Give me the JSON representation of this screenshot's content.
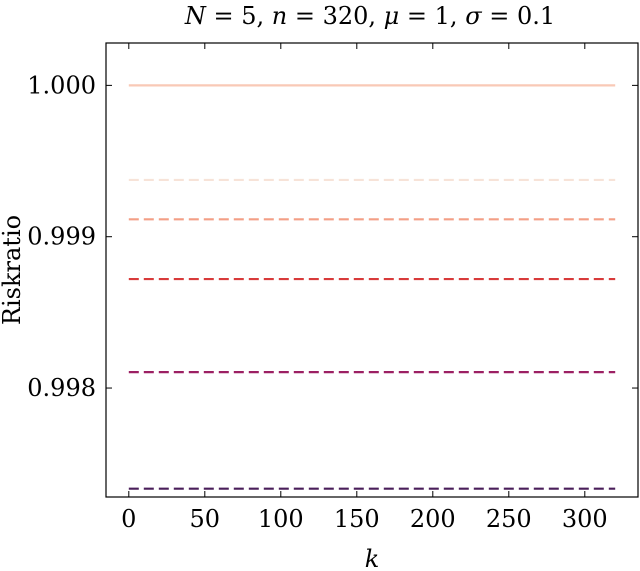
{
  "chart_data": {
    "type": "line",
    "title": "N = 5, n = 320, μ = 1, σ = 0.1",
    "xlabel": "k",
    "ylabel": "Riskratio",
    "xlim": [
      -15,
      335
    ],
    "ylim": [
      0.99728,
      1.00028
    ],
    "x_ticks": [
      0,
      50,
      100,
      150,
      200,
      250,
      300
    ],
    "y_ticks": [
      0.998,
      0.999,
      1.0
    ],
    "y_tick_labels": [
      "0.998",
      "0.999",
      "1.000"
    ],
    "x_range": [
      0,
      320
    ],
    "grid": false,
    "series": [
      {
        "y": 1.0,
        "color": "#f9c9b6",
        "dash": "solid"
      },
      {
        "y": 0.999375,
        "color": "#f7e3d8",
        "dash": "dashed"
      },
      {
        "y": 0.999115,
        "color": "#f39f86",
        "dash": "dashed"
      },
      {
        "y": 0.99872,
        "color": "#d83a3a",
        "dash": "dashed"
      },
      {
        "y": 0.998105,
        "color": "#9c2063",
        "dash": "dashed"
      },
      {
        "y": 0.997335,
        "color": "#4a1e5a",
        "dash": "dashed"
      }
    ]
  }
}
